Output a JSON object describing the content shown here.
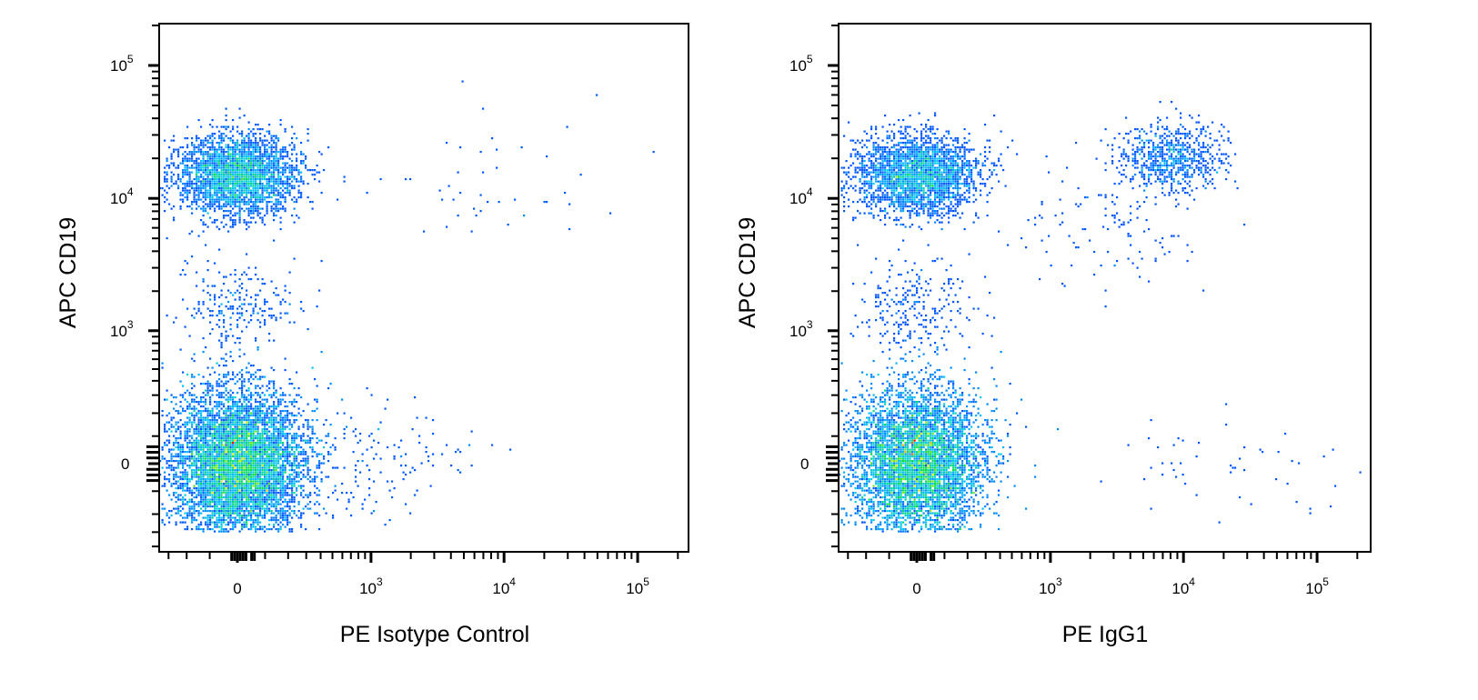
{
  "chart_data": [
    {
      "type": "scatter",
      "subtype": "flow-cytometry density dot plot",
      "xlabel": "PE  Isotype Control",
      "ylabel": "APC  CD19",
      "x_scale": "biexponential",
      "y_scale": "biexponential",
      "xlim": [
        -360,
        240000
      ],
      "ylim": [
        -440,
        200000
      ],
      "x_ticks": [
        {
          "base": "0",
          "exp": ""
        },
        {
          "base": "10",
          "exp": "3"
        },
        {
          "base": "10",
          "exp": "4"
        },
        {
          "base": "10",
          "exp": "5"
        }
      ],
      "y_ticks": [
        {
          "base": "0",
          "exp": ""
        },
        {
          "base": "10",
          "exp": "3"
        },
        {
          "base": "10",
          "exp": "4"
        },
        {
          "base": "10",
          "exp": "5"
        }
      ],
      "x_tick_values": [
        0,
        1000,
        10000,
        100000
      ],
      "y_tick_values": [
        0,
        1000,
        10000,
        100000
      ],
      "color_scale": "density (blue-cyan-green-yellow-red)",
      "populations": [
        {
          "label_shown": false,
          "x_center": 0,
          "y_center": 0,
          "x_spread_decades": 0.55,
          "y_spread_decades": 0.62,
          "events": 9000
        },
        {
          "label_shown": false,
          "x_center": 0,
          "y_center": 15000,
          "x_spread_decades": 0.5,
          "y_spread_decades": 0.33,
          "events": 3200
        },
        {
          "label_shown": false,
          "x_center": 0,
          "y_center": 1500,
          "x_spread_decades": 0.5,
          "y_spread_decades": 0.35,
          "events": 250
        },
        {
          "label_shown": false,
          "x_center": 800,
          "y_center": 0,
          "x_spread_decades": 0.9,
          "y_spread_decades": 0.5,
          "events": 180
        },
        {
          "label_shown": false,
          "x_center": 6000,
          "y_center": 12000,
          "x_spread_decades": 0.9,
          "y_spread_decades": 0.6,
          "events": 45
        }
      ]
    },
    {
      "type": "scatter",
      "subtype": "flow-cytometry density dot plot",
      "xlabel": "PE  IgG1",
      "ylabel": "APC  CD19",
      "x_scale": "biexponential",
      "y_scale": "biexponential",
      "xlim": [
        -360,
        240000
      ],
      "ylim": [
        -440,
        200000
      ],
      "x_ticks": [
        {
          "base": "0",
          "exp": ""
        },
        {
          "base": "10",
          "exp": "3"
        },
        {
          "base": "10",
          "exp": "4"
        },
        {
          "base": "10",
          "exp": "5"
        }
      ],
      "y_ticks": [
        {
          "base": "0",
          "exp": ""
        },
        {
          "base": "10",
          "exp": "3"
        },
        {
          "base": "10",
          "exp": "4"
        },
        {
          "base": "10",
          "exp": "5"
        }
      ],
      "x_tick_values": [
        0,
        1000,
        10000,
        100000
      ],
      "y_tick_values": [
        0,
        1000,
        10000,
        100000
      ],
      "color_scale": "density (blue-cyan-green-yellow-red)",
      "populations": [
        {
          "label_shown": false,
          "x_center": 0,
          "y_center": 0,
          "x_spread_decades": 0.55,
          "y_spread_decades": 0.62,
          "events": 9000
        },
        {
          "label_shown": false,
          "x_center": 0,
          "y_center": 15000,
          "x_spread_decades": 0.5,
          "y_spread_decades": 0.33,
          "events": 2800
        },
        {
          "label_shown": false,
          "x_center": 0,
          "y_center": 1500,
          "x_spread_decades": 0.5,
          "y_spread_decades": 0.35,
          "events": 250
        },
        {
          "label_shown": false,
          "x_center": 8000,
          "y_center": 20000,
          "x_spread_decades": 0.45,
          "y_spread_decades": 0.28,
          "events": 750
        },
        {
          "label_shown": false,
          "x_center": 3000,
          "y_center": 6000,
          "x_spread_decades": 0.8,
          "y_spread_decades": 0.5,
          "events": 120
        },
        {
          "label_shown": false,
          "x_center": 20000,
          "y_center": 0,
          "x_spread_decades": 1.1,
          "y_spread_decades": 0.4,
          "events": 50
        }
      ]
    }
  ]
}
